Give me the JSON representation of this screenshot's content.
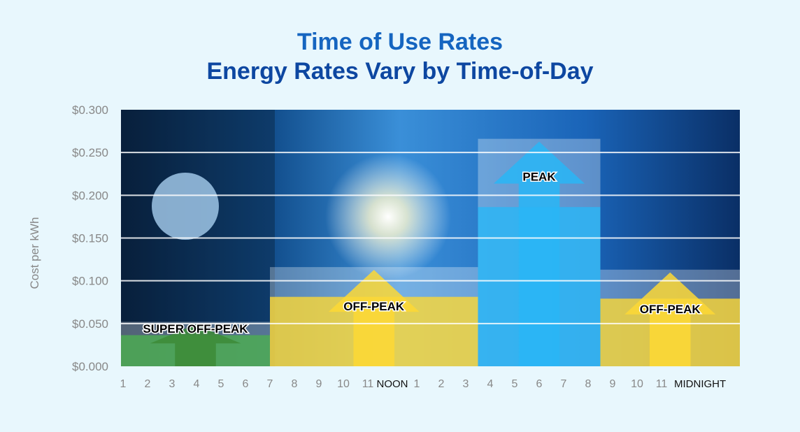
{
  "chart_data": {
    "type": "bar",
    "title": "Time of Use Rates",
    "subtitle": "Energy Rates Vary by Time-of-Day",
    "ylabel": "Cost per kWh",
    "xlabel": "",
    "ylim": [
      0,
      0.3
    ],
    "yticks": [
      "$0.000",
      "$0.050",
      "$0.100",
      "$0.150",
      "$0.200",
      "$0.250",
      "$0.300"
    ],
    "xticks": [
      "1",
      "2",
      "3",
      "4",
      "5",
      "6",
      "7",
      "8",
      "9",
      "10",
      "11",
      "NOON",
      "1",
      "2",
      "3",
      "4",
      "5",
      "6",
      "7",
      "8",
      "9",
      "10",
      "11",
      "MIDNIGHT"
    ],
    "grid": true,
    "periods": [
      {
        "label": "SUPER OFF-PEAK",
        "start_hour": 1,
        "end_hour": 7,
        "value": 0.052,
        "color": "#4caf50"
      },
      {
        "label": "OFF-PEAK",
        "start_hour": 7,
        "end_hour": 15.5,
        "value": 0.116,
        "color": "#fdd835"
      },
      {
        "label": "PEAK",
        "start_hour": 15.5,
        "end_hour": 20.5,
        "value": 0.266,
        "color": "#29b6f6"
      },
      {
        "label": "OFF-PEAK",
        "start_hour": 20.5,
        "end_hour": 24,
        "value": 0.113,
        "color": "#fdd835"
      }
    ]
  }
}
